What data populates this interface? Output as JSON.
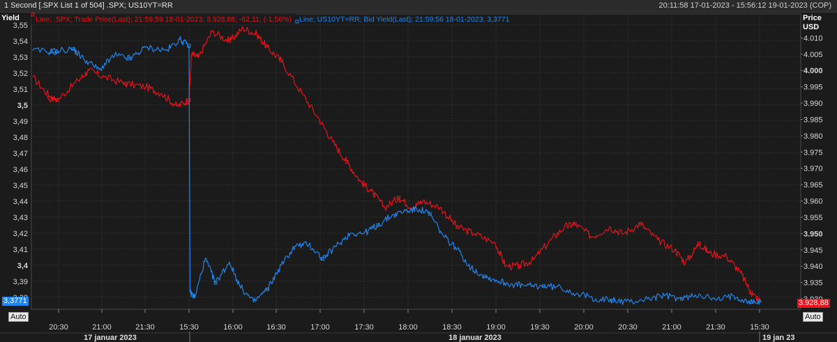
{
  "window": {
    "title": "1 Second [.SPX List 1 of 504] .SPX; US10YT=RR",
    "range": "20:11:58 17-01-2023 - 15:56:12 19-01-2023 (COP)"
  },
  "axes": {
    "left_title": "Yield",
    "right_title_1": "Price",
    "right_title_2": "USD",
    "auto_label": "Auto"
  },
  "legend": {
    "spx": "Line; .SPX; Trade Price(Last); 21:59:59 18-01-2023; 3.928,88; -62,11; (-1,56%)",
    "us10": "Line; US10YT=RR; Bid Yield(Last); 21:59:56 18-01-2023; 3,3771"
  },
  "last_values": {
    "yield": "3,3771",
    "price": "3.928,88"
  },
  "colors": {
    "spx": "#e8121b",
    "us10": "#1f86f0",
    "grid": "#3c3c3c",
    "background": "#1b1b1b"
  },
  "chart_data": {
    "type": "line",
    "x_unit": "hours since 17-01-2023 20:11:58 (session-compressed axis)",
    "x_ticks": [
      "20:30",
      "21:00",
      "21:30",
      "15:30",
      "16:00",
      "16:30",
      "17:00",
      "17:30",
      "18:00",
      "18:30",
      "19:00",
      "19:30",
      "20:00",
      "20:30",
      "21:00",
      "21:30",
      "15:30"
    ],
    "date_labels": [
      "17 januar 2023",
      "18 januar 2023",
      "19 jan 23"
    ],
    "left_axis": {
      "label": "Yield",
      "ticks": [
        "3,55",
        "3,54",
        "3,53",
        "3,52",
        "3,51",
        "3,5",
        "3,49",
        "3,48",
        "3,47",
        "3,46",
        "3,45",
        "3,44",
        "3,43",
        "3,42",
        "3,41",
        "3,4",
        "3,39",
        "3,38"
      ],
      "ylim": [
        3.3725,
        3.5525
      ]
    },
    "right_axis": {
      "label": "Price USD",
      "ticks": [
        "4.010",
        "4.005",
        "4.000",
        "3.995",
        "3.990",
        "3.985",
        "3.980",
        "3.975",
        "3.970",
        "3.965",
        "3.960",
        "3.955",
        "3.950",
        "3.945",
        "3.940",
        "3.935",
        "3.930"
      ],
      "ylim": [
        3926.8,
        4015.2
      ]
    },
    "series": [
      {
        "name": ".SPX Trade Price(Last)",
        "axis": "right",
        "points": [
          [
            0.0,
            3998
          ],
          [
            0.2,
            3992
          ],
          [
            0.5,
            3991
          ],
          [
            0.9,
            3997
          ],
          [
            1.1,
            4000
          ],
          [
            1.4,
            3998
          ],
          [
            1.8,
            3996
          ],
          [
            2.2,
            3995
          ],
          [
            2.5,
            3993
          ],
          [
            2.8,
            3989
          ],
          [
            3.03,
            3991
          ],
          [
            3.1,
            4005
          ],
          [
            3.3,
            4004
          ],
          [
            3.7,
            4012
          ],
          [
            4.2,
            4009
          ],
          [
            4.6,
            4013
          ],
          [
            5.0,
            4011
          ],
          [
            5.3,
            4007
          ],
          [
            5.7,
            4003
          ],
          [
            6.3,
            3993
          ],
          [
            6.8,
            3985
          ],
          [
            7.2,
            3978
          ],
          [
            7.6,
            3972
          ],
          [
            8.0,
            3966
          ],
          [
            8.3,
            3963
          ],
          [
            8.7,
            3958
          ],
          [
            9.1,
            3961
          ],
          [
            9.5,
            3958
          ],
          [
            9.8,
            3960
          ],
          [
            10.3,
            3958
          ],
          [
            10.8,
            3952
          ],
          [
            11.3,
            3950
          ],
          [
            11.9,
            3947
          ],
          [
            12.2,
            3940
          ],
          [
            12.6,
            3940
          ],
          [
            13.0,
            3942
          ],
          [
            13.5,
            3948
          ],
          [
            13.9,
            3952
          ],
          [
            14.2,
            3953
          ],
          [
            14.7,
            3949
          ],
          [
            15.2,
            3952
          ],
          [
            15.6,
            3950
          ],
          [
            16.1,
            3953
          ],
          [
            16.6,
            3948
          ],
          [
            17.1,
            3945
          ],
          [
            17.4,
            3941
          ],
          [
            17.8,
            3947
          ],
          [
            18.1,
            3944
          ],
          [
            18.6,
            3943
          ],
          [
            19.0,
            3938
          ],
          [
            19.3,
            3932
          ],
          [
            19.6,
            3928.9
          ]
        ]
      },
      {
        "name": "US10YT=RR Bid Yield(Last)",
        "axis": "left",
        "points": [
          [
            0.0,
            3.534
          ],
          [
            0.3,
            3.533
          ],
          [
            0.8,
            3.535
          ],
          [
            1.0,
            3.529
          ],
          [
            1.3,
            3.522
          ],
          [
            1.6,
            3.531
          ],
          [
            1.9,
            3.529
          ],
          [
            2.2,
            3.536
          ],
          [
            2.6,
            3.534
          ],
          [
            2.85,
            3.541
          ],
          [
            3.03,
            3.537
          ],
          [
            3.06,
            3.383
          ],
          [
            3.2,
            3.38
          ],
          [
            3.5,
            3.404
          ],
          [
            3.8,
            3.389
          ],
          [
            4.2,
            3.402
          ],
          [
            4.5,
            3.387
          ],
          [
            4.9,
            3.377
          ],
          [
            5.3,
            3.385
          ],
          [
            5.7,
            3.4
          ],
          [
            6.1,
            3.412
          ],
          [
            6.5,
            3.413
          ],
          [
            6.9,
            3.404
          ],
          [
            7.3,
            3.412
          ],
          [
            7.7,
            3.42
          ],
          [
            8.1,
            3.42
          ],
          [
            8.5,
            3.425
          ],
          [
            8.9,
            3.431
          ],
          [
            9.3,
            3.434
          ],
          [
            9.7,
            3.435
          ],
          [
            10.0,
            3.432
          ],
          [
            10.4,
            3.418
          ],
          [
            10.8,
            3.41
          ],
          [
            11.2,
            3.398
          ],
          [
            11.6,
            3.393
          ],
          [
            12.0,
            3.39
          ],
          [
            12.4,
            3.388
          ],
          [
            12.8,
            3.387
          ],
          [
            13.3,
            3.387
          ],
          [
            13.8,
            3.386
          ],
          [
            14.3,
            3.382
          ],
          [
            14.8,
            3.379
          ],
          [
            15.3,
            3.378
          ],
          [
            15.8,
            3.377
          ],
          [
            16.3,
            3.379
          ],
          [
            16.8,
            3.381
          ],
          [
            17.3,
            3.379
          ],
          [
            17.8,
            3.382
          ],
          [
            18.3,
            3.378
          ],
          [
            18.8,
            3.381
          ],
          [
            19.3,
            3.377
          ],
          [
            19.6,
            3.3771
          ]
        ]
      }
    ]
  }
}
